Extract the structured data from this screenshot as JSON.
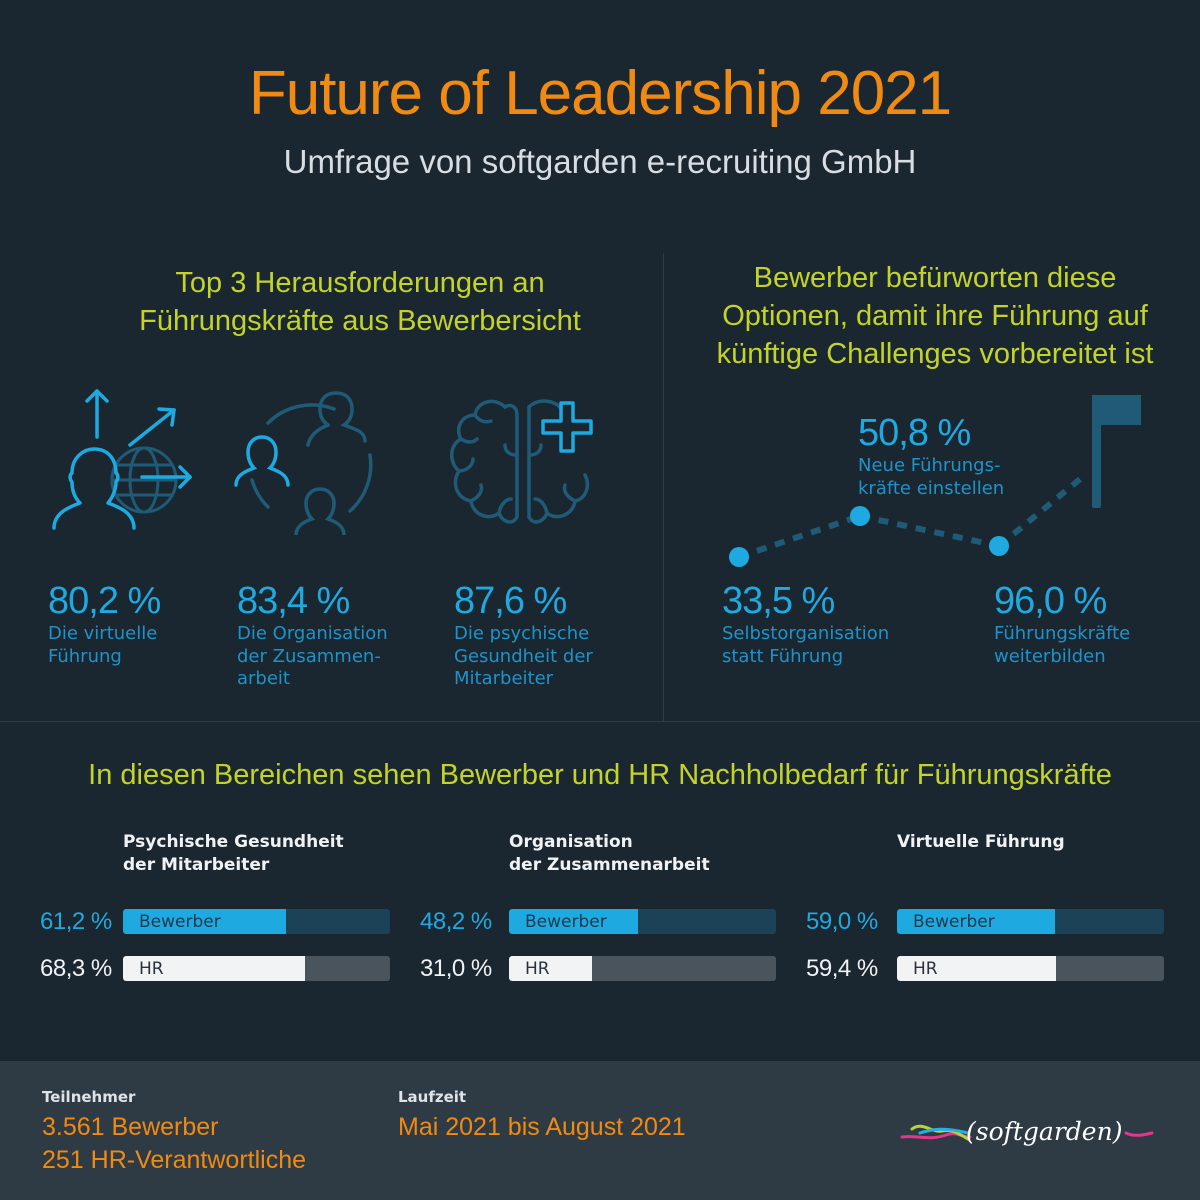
{
  "header": {
    "title": "Future of Leadership 2021",
    "subtitle": "Umfrage von softgarden e-recruiting GmbH"
  },
  "colors": {
    "orange": "#f08a12",
    "lime": "#c2d32a",
    "blue": "#1fa9e1",
    "dark_blue": "#1f5b77",
    "background": "#1b2730"
  },
  "challenges": {
    "heading_line1": "Top 3 Herausforderungen an",
    "heading_line2": "Führungskräfte aus Bewerbersicht",
    "items": [
      {
        "icon": "virtual-leadership-icon",
        "value": "80,2 %",
        "label_lines": [
          "Die virtuelle",
          "Führung"
        ]
      },
      {
        "icon": "team-collaboration-icon",
        "value": "83,4 %",
        "label_lines": [
          "Die Organisation",
          "der Zusammen-",
          "arbeit"
        ]
      },
      {
        "icon": "brain-health-icon",
        "value": "87,6 %",
        "label_lines": [
          "Die psychische",
          "Gesundheit der",
          "Mitarbeiter"
        ]
      }
    ]
  },
  "options": {
    "heading_lines": [
      "Bewerber befürworten diese",
      "Optionen, damit ihre Führung auf",
      "künftige Challenges vorbereitet ist"
    ],
    "points": [
      {
        "value": "33,5 %",
        "label_lines": [
          "Selbstorganisation",
          "statt Führung"
        ]
      },
      {
        "value": "50,8 %",
        "label_lines": [
          "Neue Führungs-",
          "kräfte einstellen"
        ]
      },
      {
        "value": "96,0 %",
        "label_lines": [
          "Führungskräfte",
          "weiterbilden"
        ]
      }
    ],
    "goal_icon": "flag-icon"
  },
  "chart_data": {
    "type": "bar",
    "title": "In diesen Bereichen sehen Bewerber und HR Nachholbedarf für Führungskräfte",
    "categories": [
      "Psychische Gesundheit der Mitarbeiter",
      "Organisation der Zusammenarbeit",
      "Virtuelle Führung"
    ],
    "category_lines": [
      [
        "Psychische Gesundheit",
        "der Mitarbeiter"
      ],
      [
        "Organisation",
        "der Zusammenarbeit"
      ],
      [
        "Virtuelle Führung"
      ]
    ],
    "series": [
      {
        "name": "Bewerber",
        "values": [
          61.2,
          48.2,
          59.0
        ],
        "labels": [
          "61,2 %",
          "48,2 %",
          "59,0 %"
        ]
      },
      {
        "name": "HR",
        "values": [
          68.3,
          31.0,
          59.4
        ],
        "labels": [
          "68,3 %",
          "31,0 %",
          "59,4 %"
        ]
      }
    ],
    "ylim": [
      0,
      100
    ],
    "orientation": "horizontal"
  },
  "footer": {
    "participants_label": "Teilnehmer",
    "participants_lines": [
      "3.561 Bewerber",
      "251 HR-Verantwortliche"
    ],
    "duration_label": "Laufzeit",
    "duration_value": "Mai 2021 bis August 2021",
    "logo_text": "(softgarden)"
  }
}
